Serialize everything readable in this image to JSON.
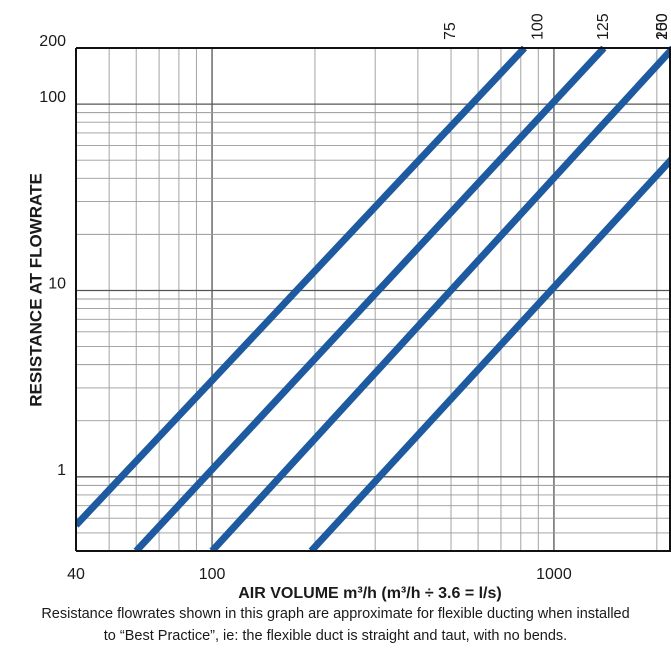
{
  "chart_data": {
    "type": "line",
    "title": "",
    "xlabel": "AIR VOLUME m³/h (m³/h ÷ 3.6 = l/s)",
    "ylabel": "RESISTANCE AT FLOWRATE",
    "x_scale": "log",
    "y_scale": "log",
    "xlim": [
      40,
      2200
    ],
    "ylim": [
      0.4,
      200
    ],
    "grid": true,
    "x_ticks": [
      {
        "value": 40,
        "label": "40"
      },
      {
        "value": 100,
        "label": "100"
      },
      {
        "value": 1000,
        "label": "1000"
      }
    ],
    "y_ticks": [
      {
        "value": 1,
        "label": "1"
      },
      {
        "value": 10,
        "label": "10"
      },
      {
        "value": 100,
        "label": "100"
      },
      {
        "value": 200,
        "label": "200"
      }
    ],
    "series": [
      {
        "name": "75",
        "x": [
          40,
          820
        ],
        "y": [
          0.55,
          200
        ]
      },
      {
        "name": "100",
        "x": [
          60,
          1400
        ],
        "y": [
          0.4,
          200
        ]
      },
      {
        "name": "125",
        "x": [
          100,
          2230
        ],
        "y": [
          0.4,
          200
        ]
      },
      {
        "name": "150",
        "x": [
          195,
          4400
        ],
        "y": [
          0.4,
          200
        ]
      }
    ],
    "top_labels": [
      {
        "value": 500,
        "label": "75"
      },
      {
        "value": 900,
        "label": "100"
      },
      {
        "value": 1400,
        "label": "125"
      },
      {
        "value": 2250,
        "label": "150"
      },
      {
        "value": 3700,
        "label": "200"
      }
    ],
    "line_color": "#1d5aa0"
  },
  "notes": {
    "line1": "Resistance flowrates shown in this graph are approximate for flexible ducting when installed",
    "line2": "to “Best Practice”, ie: the flexible duct is straight and taut, with no bends."
  }
}
